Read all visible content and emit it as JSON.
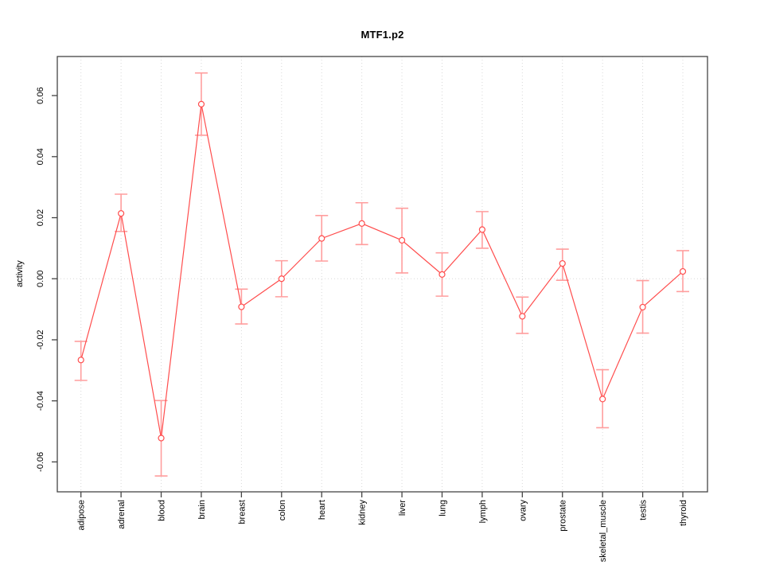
{
  "chart_data": {
    "type": "line",
    "title": "MTF1.p2",
    "ylabel": "activity",
    "xlabel": "",
    "categories": [
      "adipose",
      "adrenal",
      "blood",
      "brain",
      "breast",
      "colon",
      "heart",
      "kidney",
      "liver",
      "lung",
      "lymph",
      "ovary",
      "prostate",
      "skeletal_muscle",
      "testis",
      "thyroid"
    ],
    "series": [
      {
        "name": "activity",
        "values": [
          -0.0266,
          0.0214,
          -0.0522,
          0.0572,
          -0.0092,
          0.0,
          0.0132,
          0.0181,
          0.0126,
          0.0014,
          0.0161,
          -0.0123,
          0.005,
          -0.0394,
          -0.0093,
          0.0024
        ],
        "err_low": [
          -0.0333,
          0.0155,
          -0.0646,
          0.047,
          -0.0148,
          -0.0059,
          0.0058,
          0.0112,
          0.0019,
          -0.0057,
          0.01,
          -0.0179,
          -0.0005,
          -0.0488,
          -0.0178,
          -0.0042
        ],
        "err_high": [
          -0.0205,
          0.0277,
          -0.0399,
          0.0674,
          -0.0034,
          0.0059,
          0.0207,
          0.0249,
          0.0231,
          0.0085,
          0.022,
          -0.006,
          0.0097,
          -0.0298,
          -0.0006,
          0.0092
        ]
      }
    ],
    "yticks": [
      -0.06,
      -0.04,
      -0.02,
      0.0,
      0.02,
      0.04,
      0.06
    ],
    "ytick_labels": [
      "-0.06",
      "-0.04",
      "-0.02",
      "0.00",
      "0.02",
      "0.04",
      "0.06"
    ],
    "ylim": [
      -0.0698,
      0.0728
    ],
    "grid": "dotted vertical line per category, dotted horizontal line at 0",
    "legend": "none",
    "marker": "open-circle",
    "colors": {
      "line": "#ff4d4d",
      "marker": "#ff4d4d",
      "error_bar": "#ff9e9e",
      "grid": "#d8d8d8",
      "axis": "#444444",
      "text": "#000000",
      "background": "#ffffff"
    }
  }
}
